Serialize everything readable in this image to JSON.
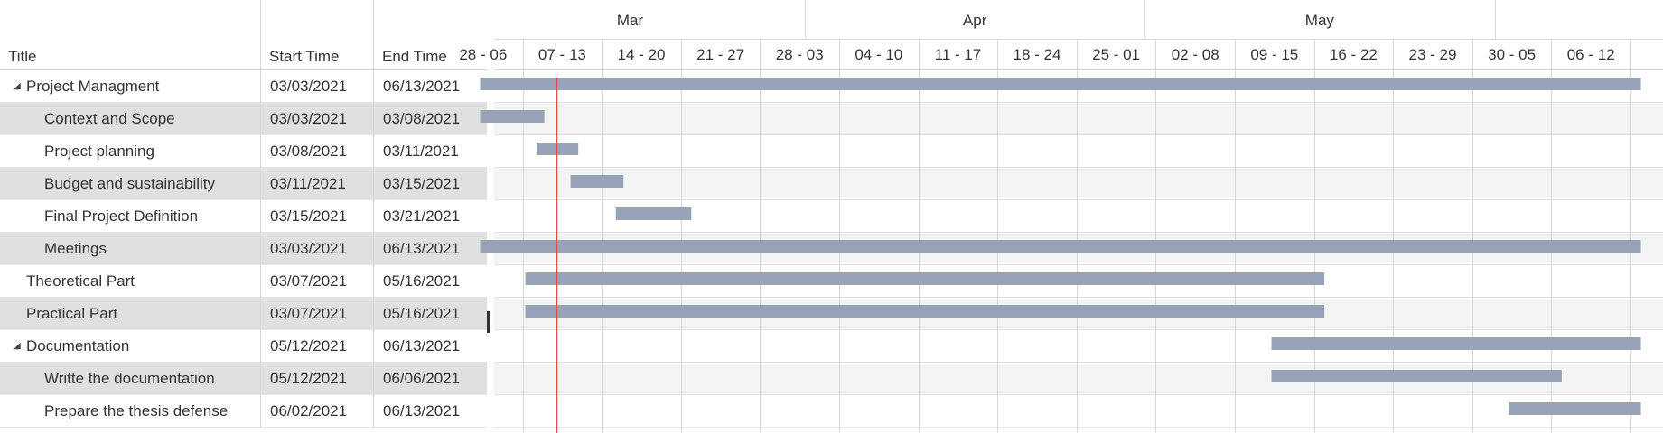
{
  "grid": {
    "columns": {
      "title": "Title",
      "start": "Start Time",
      "end": "End Time"
    },
    "rows": [
      {
        "title": "Project Managment",
        "start": "03/03/2021",
        "end": "06/13/2021",
        "level": 0,
        "expandable": true
      },
      {
        "title": "Context and Scope",
        "start": "03/03/2021",
        "end": "03/08/2021",
        "level": 1,
        "expandable": false
      },
      {
        "title": "Project planning",
        "start": "03/08/2021",
        "end": "03/11/2021",
        "level": 1,
        "expandable": false
      },
      {
        "title": "Budget and sustainability",
        "start": "03/11/2021",
        "end": "03/15/2021",
        "level": 1,
        "expandable": false
      },
      {
        "title": "Final Project Definition",
        "start": "03/15/2021",
        "end": "03/21/2021",
        "level": 1,
        "expandable": false
      },
      {
        "title": "Meetings",
        "start": "03/03/2021",
        "end": "06/13/2021",
        "level": 1,
        "expandable": false
      },
      {
        "title": "Theoretical Part",
        "start": "03/07/2021",
        "end": "05/16/2021",
        "level": 0,
        "expandable": false
      },
      {
        "title": "Practical Part",
        "start": "03/07/2021",
        "end": "05/16/2021",
        "level": 0,
        "expandable": false
      },
      {
        "title": "Documentation",
        "start": "05/12/2021",
        "end": "06/13/2021",
        "level": 0,
        "expandable": true
      },
      {
        "title": "Writte the documentation",
        "start": "05/12/2021",
        "end": "06/06/2021",
        "level": 1,
        "expandable": false
      },
      {
        "title": "Prepare the thesis defense",
        "start": "06/02/2021",
        "end": "06/13/2021",
        "level": 1,
        "expandable": false
      }
    ],
    "expanded_icon": "triangle-expanded-icon"
  },
  "timeline": {
    "months": [
      "Mar",
      "Apr",
      "May"
    ],
    "weeks": [
      "28 - 06",
      "07 - 13",
      "14 - 20",
      "21 - 27",
      "28 - 03",
      "04 - 10",
      "11 - 17",
      "18 - 24",
      "25 - 01",
      "02 - 08",
      "09 - 15",
      "16 - 22",
      "23 - 29",
      "30 - 05",
      "06 - 12"
    ],
    "first_week_start": "2021-02-28",
    "today": "2021-03-10",
    "colors": {
      "bar": "#97a3b6",
      "today_line": "#e8473f",
      "grid_line": "#d8d8d8",
      "alt_row": "#f4f4f4"
    }
  }
}
